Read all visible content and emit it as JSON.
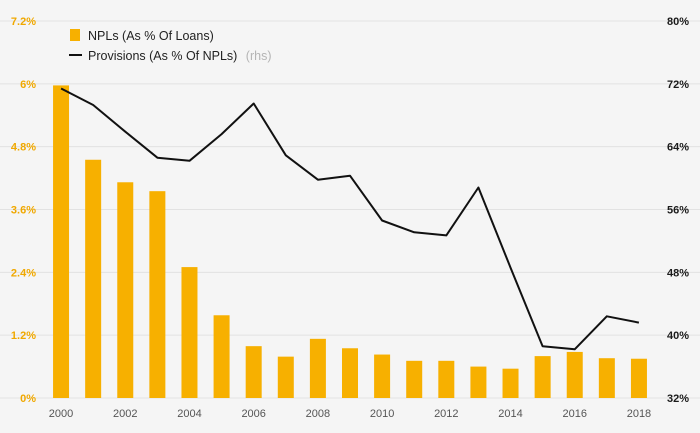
{
  "chart_data": {
    "type": "bar",
    "x": [
      "2000",
      "2001",
      "2002",
      "2003",
      "2004",
      "2005",
      "2006",
      "2007",
      "2008",
      "2009",
      "2010",
      "2011",
      "2012",
      "2013",
      "2014",
      "2015",
      "2016",
      "2017",
      "2018"
    ],
    "xtick_labels": [
      "2000",
      "2002",
      "2004",
      "2006",
      "2008",
      "2010",
      "2012",
      "2014",
      "2016",
      "2018"
    ],
    "series": [
      {
        "name": "NPLs (As % Of Loans)",
        "type": "bar",
        "axis": "left",
        "color": "#f7b000",
        "values": [
          5.97,
          4.55,
          4.12,
          3.95,
          2.5,
          1.58,
          0.99,
          0.79,
          1.13,
          0.95,
          0.83,
          0.71,
          0.71,
          0.6,
          0.56,
          0.8,
          0.88,
          0.76,
          0.75
        ]
      },
      {
        "name": "Provisions (As % Of NPLs)",
        "legend_suffix": "(rhs)",
        "type": "line",
        "axis": "right",
        "color": "#111111",
        "values": [
          71.4,
          69.3,
          65.9,
          62.6,
          62.2,
          65.6,
          69.5,
          62.9,
          59.8,
          60.3,
          54.6,
          53.1,
          52.7,
          58.8,
          48.6,
          38.6,
          38.2,
          42.4,
          41.6
        ]
      }
    ],
    "y_left": {
      "lim": [
        0,
        7.2
      ],
      "ticks": [
        "0%",
        "1.2%",
        "2.4%",
        "3.6%",
        "4.8%",
        "6%",
        "7.2%"
      ],
      "color": "#f0a800"
    },
    "y_right": {
      "lim": [
        32,
        80
      ],
      "ticks": [
        "32%",
        "40%",
        "48%",
        "56%",
        "64%",
        "72%",
        "80%"
      ],
      "color": "#1a1a1a"
    },
    "grid": true,
    "legend_position": "top-left",
    "background": "#f5f5f5"
  }
}
